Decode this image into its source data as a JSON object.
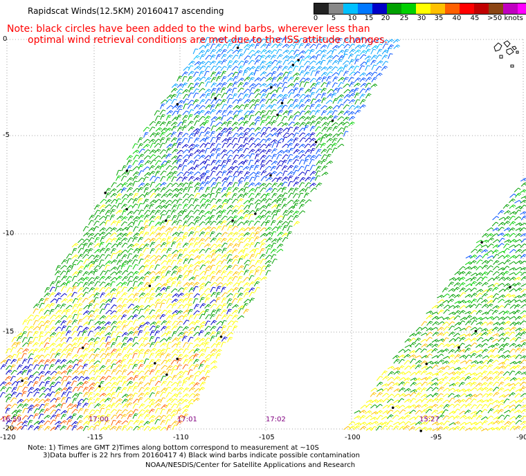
{
  "title": "Rapidscat Winds(12.5KM) 20160417 ascending",
  "note_line1": "Note: black circles have been added to the wind barbs, wherever less than",
  "note_line2": "optimal wind retrieval conditions are met due to the ISS attitude changes.",
  "colorbar": {
    "labels": [
      "0",
      "5",
      "10",
      "15",
      "20",
      "25",
      "30",
      "35",
      "40",
      "45",
      ">50 knots"
    ],
    "colors": [
      "#222222",
      "#888888",
      "#00c0ff",
      "#0078ff",
      "#0000c8",
      "#00a000",
      "#00d000",
      "#ffff00",
      "#ffc000",
      "#ff6000",
      "#ff0000",
      "#c00000",
      "#8b4513",
      "#c000c0",
      "#ff00ff",
      "#8000c0"
    ]
  },
  "axes": {
    "lon_labels": [
      "-120",
      "-115",
      "-110",
      "-105",
      "-100",
      "-95",
      "-90"
    ],
    "lat_labels": [
      "0",
      "-5",
      "-10",
      "-15",
      "-20"
    ]
  },
  "times": [
    "16:59",
    "17:00",
    "17:01",
    "17:02",
    "15:27"
  ],
  "footer": {
    "line1": "Note: 1) Times are GMT 2)Times along bottom correspond to measurement at ~10S",
    "line2": "3)Data buffer is 22 hrs from 20160417 4) Black wind barbs indicate possible contamination",
    "line3": "NOAA/NESDIS/Center for Satellite Applications and Research"
  }
}
